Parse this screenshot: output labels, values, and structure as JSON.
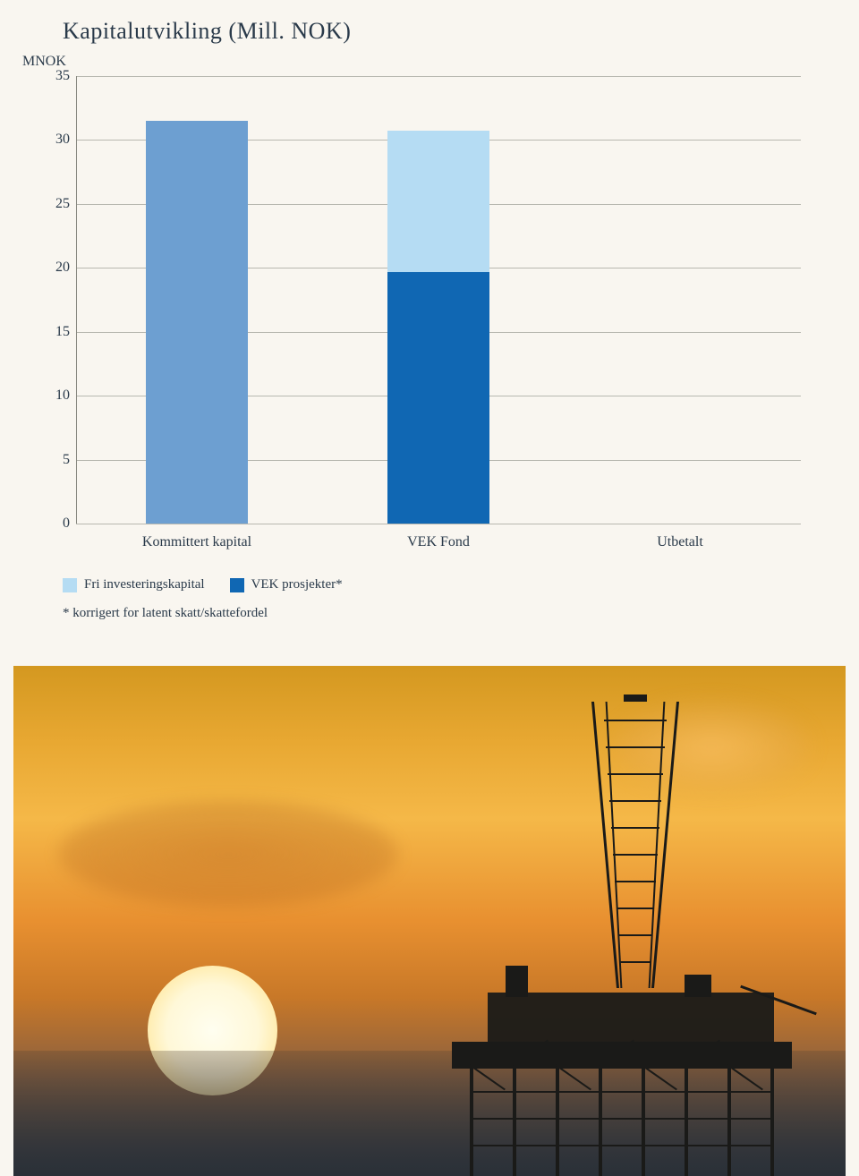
{
  "chart": {
    "title": "Kapitalutvikling (Mill. NOK)",
    "y_axis_label": "MNOK",
    "type": "bar",
    "ylim": [
      0,
      35
    ],
    "ytick_step": 5,
    "yticks": [
      0,
      5,
      10,
      15,
      20,
      25,
      30,
      35
    ],
    "categories": [
      "Kommittert kapital",
      "VEK Fond",
      "Utbetalt"
    ],
    "series": [
      {
        "name": "Fri investeringskapital",
        "color": "#b5dcf3"
      },
      {
        "name": "VEK prosjekter*",
        "color": "#1067b3"
      }
    ],
    "bars": [
      {
        "category": "Kommittert kapital",
        "segments": [
          {
            "value": 31.5,
            "color": "#6d9fd1"
          }
        ]
      },
      {
        "category": "VEK Fond",
        "segments": [
          {
            "value": 19.7,
            "color": "#1067b3"
          },
          {
            "value": 11.0,
            "color": "#b5dcf3"
          }
        ]
      },
      {
        "category": "Utbetalt",
        "segments": []
      }
    ],
    "bar_color_single": "#6d9fd1",
    "bar_width_pct": 14,
    "grid_color": "#b8b8b0",
    "axis_color": "#888880",
    "background_color": "#f9f6f0",
    "title_fontsize": 26,
    "label_fontsize": 16,
    "legend_fontsize": 15
  },
  "footnote": "* korrigert for latent skatt/skattefordel",
  "image": {
    "description": "Offshore oil rig silhouette at sunset over ocean",
    "sky_gradient": [
      "#d49820",
      "#e8a832",
      "#f5b848",
      "#e89030",
      "#c87828",
      "#8a6040",
      "#3a4048"
    ],
    "sun_color": "#fffef0",
    "rig_color": "#1a1a18"
  }
}
